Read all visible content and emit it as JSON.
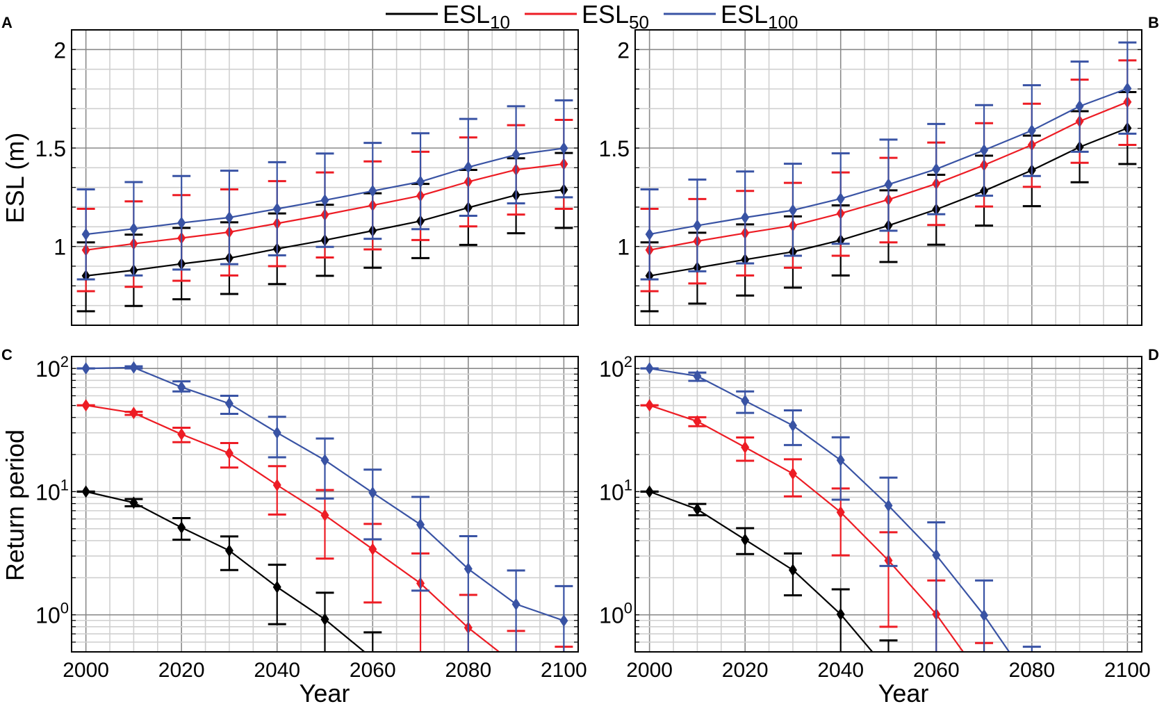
{
  "legend": [
    {
      "name": "ESL10",
      "base": "ESL",
      "sub": "10",
      "color": "#000000"
    },
    {
      "name": "ESL50",
      "base": "ESL",
      "sub": "50",
      "color": "#ed1c24"
    },
    {
      "name": "ESL100",
      "base": "ESL",
      "sub": "100",
      "color": "#3953a4"
    }
  ],
  "chart_data": [
    {
      "panel": "A",
      "type": "line",
      "yscale": "linear",
      "ylabel": "ESL (m)",
      "xlabel": "",
      "xlim": [
        1997,
        2103
      ],
      "ylim": [
        0.6,
        2.1
      ],
      "xticks": [
        2000,
        2020,
        2040,
        2060,
        2080,
        2100
      ],
      "xticklabels": [],
      "yticks": [
        1,
        1.5,
        2
      ],
      "yticklabels": [
        "1",
        "1.5",
        "2"
      ],
      "grid": true,
      "x": [
        2000,
        2010,
        2020,
        2030,
        2040,
        2050,
        2060,
        2070,
        2080,
        2090,
        2100
      ],
      "series": [
        {
          "name": "ESL10",
          "values": [
            0.851,
            0.879,
            0.912,
            0.941,
            0.988,
            1.032,
            1.08,
            1.129,
            1.197,
            1.261,
            1.288
          ],
          "upper": [
            1.021,
            1.06,
            1.094,
            1.123,
            1.168,
            1.212,
            1.27,
            1.318,
            1.389,
            1.448,
            1.475
          ],
          "lower": [
            0.671,
            0.698,
            0.732,
            0.759,
            0.809,
            0.851,
            0.892,
            0.941,
            1.008,
            1.067,
            1.094
          ]
        },
        {
          "name": "ESL50",
          "values": [
            0.982,
            1.014,
            1.043,
            1.073,
            1.117,
            1.161,
            1.209,
            1.258,
            1.329,
            1.39,
            1.419
          ],
          "upper": [
            1.191,
            1.229,
            1.261,
            1.29,
            1.332,
            1.376,
            1.432,
            1.481,
            1.554,
            1.616,
            1.643
          ],
          "lower": [
            0.773,
            0.795,
            0.826,
            0.853,
            0.9,
            0.944,
            0.985,
            1.033,
            1.102,
            1.162,
            1.191
          ]
        },
        {
          "name": "ESL100",
          "values": [
            1.062,
            1.09,
            1.12,
            1.147,
            1.191,
            1.235,
            1.282,
            1.329,
            1.403,
            1.466,
            1.499
          ],
          "upper": [
            1.29,
            1.327,
            1.358,
            1.385,
            1.428,
            1.472,
            1.526,
            1.575,
            1.648,
            1.712,
            1.742
          ],
          "lower": [
            0.833,
            0.853,
            0.883,
            0.91,
            0.955,
            0.998,
            1.039,
            1.088,
            1.156,
            1.219,
            1.25
          ]
        }
      ]
    },
    {
      "panel": "B",
      "type": "line",
      "yscale": "linear",
      "ylabel": "",
      "xlabel": "",
      "xlim": [
        1997,
        2103
      ],
      "ylim": [
        0.6,
        2.1
      ],
      "xticks": [
        2000,
        2020,
        2040,
        2060,
        2080,
        2100
      ],
      "xticklabels": [],
      "yticks": [
        1,
        1.5,
        2
      ],
      "yticklabels": [
        "1",
        "1.5",
        "2"
      ],
      "grid": true,
      "x": [
        2000,
        2010,
        2020,
        2030,
        2040,
        2050,
        2060,
        2070,
        2080,
        2090,
        2100
      ],
      "series": [
        {
          "name": "ESL10",
          "values": [
            0.851,
            0.892,
            0.933,
            0.973,
            1.032,
            1.106,
            1.188,
            1.282,
            1.387,
            1.505,
            1.601
          ],
          "upper": [
            1.021,
            1.07,
            1.112,
            1.153,
            1.209,
            1.285,
            1.364,
            1.461,
            1.563,
            1.687,
            1.784
          ],
          "lower": [
            0.671,
            0.71,
            0.751,
            0.791,
            0.853,
            0.921,
            1.009,
            1.106,
            1.205,
            1.326,
            1.419
          ]
        },
        {
          "name": "ESL50",
          "values": [
            0.982,
            1.027,
            1.068,
            1.106,
            1.168,
            1.238,
            1.319,
            1.413,
            1.516,
            1.636,
            1.734
          ],
          "upper": [
            1.191,
            1.241,
            1.282,
            1.323,
            1.376,
            1.45,
            1.528,
            1.626,
            1.725,
            1.847,
            1.945
          ],
          "lower": [
            0.773,
            0.812,
            0.853,
            0.892,
            0.953,
            1.021,
            1.109,
            1.203,
            1.303,
            1.425,
            1.516
          ]
        },
        {
          "name": "ESL100",
          "values": [
            1.062,
            1.106,
            1.147,
            1.184,
            1.243,
            1.315,
            1.393,
            1.489,
            1.589,
            1.712,
            1.802
          ],
          "upper": [
            1.29,
            1.34,
            1.381,
            1.42,
            1.473,
            1.543,
            1.622,
            1.718,
            1.819,
            1.939,
            2.036
          ],
          "lower": [
            0.833,
            0.874,
            0.914,
            0.953,
            1.014,
            1.08,
            1.164,
            1.258,
            1.358,
            1.481,
            1.573
          ]
        }
      ]
    },
    {
      "panel": "C",
      "type": "line",
      "yscale": "log",
      "ylabel": "Return period",
      "xlabel": "Year",
      "xlim": [
        1997,
        2103
      ],
      "ylim": [
        0.5,
        125
      ],
      "xticks": [
        2000,
        2020,
        2040,
        2060,
        2080,
        2100
      ],
      "xticklabels": [
        "2000",
        "2020",
        "2040",
        "2060",
        "2080",
        "2100"
      ],
      "yticks": [
        1,
        10,
        100
      ],
      "yticklabels": [
        "10^0",
        "10^1",
        "10^2"
      ],
      "grid": true,
      "x": [
        2000,
        2010,
        2020,
        2030,
        2040,
        2050,
        2060,
        2070,
        2080,
        2090,
        2100
      ],
      "series": [
        {
          "name": "ESL10",
          "values": [
            10,
            8.13,
            5.11,
            3.32,
            1.68,
            0.92,
            0.44,
            null,
            null,
            null,
            null
          ],
          "upper": [
            10,
            8.7,
            6.1,
            4.33,
            2.55,
            1.51,
            0.72,
            null,
            null,
            null,
            null
          ],
          "lower": [
            10,
            7.6,
            4.07,
            2.31,
            0.84,
            null,
            null,
            null,
            null,
            null,
            null
          ]
        },
        {
          "name": "ESL50",
          "values": [
            50.2,
            43.5,
            29.2,
            20.5,
            11.3,
            6.43,
            3.41,
            1.8,
            0.785,
            0.39,
            null
          ],
          "upper": [
            50.2,
            44.5,
            33,
            24.8,
            16.1,
            10.3,
            5.47,
            3.15,
            1.45,
            0.74,
            0.55
          ],
          "lower": [
            50.2,
            42,
            25.2,
            15.7,
            6.52,
            2.86,
            1.26,
            null,
            null,
            null,
            null
          ]
        },
        {
          "name": "ESL100",
          "values": [
            100,
            101.8,
            70.5,
            51.9,
            30.1,
            18,
            9.8,
            5.4,
            2.36,
            1.22,
            0.896
          ],
          "upper": [
            100,
            104,
            78.5,
            60,
            40.5,
            27,
            15.1,
            9.06,
            4.35,
            2.29,
            1.71
          ],
          "lower": [
            100,
            100,
            65.1,
            42.8,
            19.0,
            8.79,
            4.1,
            1.57,
            null,
            null,
            null
          ]
        }
      ]
    },
    {
      "panel": "D",
      "type": "line",
      "yscale": "log",
      "ylabel": "",
      "xlabel": "Year",
      "xlim": [
        1997,
        2103
      ],
      "ylim": [
        0.5,
        125
      ],
      "xticks": [
        2000,
        2020,
        2040,
        2060,
        2080,
        2100
      ],
      "xticklabels": [
        "2000",
        "2020",
        "2040",
        "2060",
        "2080",
        "2100"
      ],
      "yticks": [
        1,
        10,
        100
      ],
      "yticklabels": [
        "10^0",
        "10^1",
        "10^2"
      ],
      "grid": true,
      "x": [
        2000,
        2010,
        2020,
        2030,
        2040,
        2050,
        2060,
        2070,
        2080,
        2090,
        2100
      ],
      "series": [
        {
          "name": "ESL10",
          "values": [
            10,
            7.18,
            4.07,
            2.31,
            1.01,
            0.35,
            null,
            null,
            null,
            null,
            null
          ],
          "upper": [
            10,
            7.95,
            5.05,
            3.15,
            1.61,
            0.62,
            null,
            null,
            null,
            null,
            null
          ],
          "lower": [
            10,
            6.43,
            3.11,
            1.44,
            null,
            null,
            null,
            null,
            null,
            null,
            null
          ]
        },
        {
          "name": "ESL50",
          "values": [
            50.2,
            37.2,
            22.9,
            14.0,
            6.8,
            2.76,
            1.01,
            0.29,
            null,
            null,
            null
          ],
          "upper": [
            50.2,
            40.2,
            27.5,
            18.3,
            10.6,
            4.68,
            1.9,
            0.59,
            null,
            null,
            null
          ],
          "lower": [
            50.2,
            34.0,
            17.8,
            9.15,
            3.04,
            0.8,
            null,
            null,
            null,
            null,
            null
          ]
        },
        {
          "name": "ESL100",
          "values": [
            100,
            86.6,
            54.6,
            34.4,
            18.0,
            7.7,
            3.05,
            0.99,
            0.27,
            null,
            null
          ],
          "upper": [
            100,
            92.6,
            65.1,
            45.7,
            27.6,
            13.0,
            5.63,
            1.9,
            0.55,
            null,
            null
          ],
          "lower": [
            100,
            79.3,
            43.6,
            23.9,
            8.6,
            2.49,
            null,
            null,
            null,
            null,
            null
          ]
        }
      ]
    }
  ]
}
